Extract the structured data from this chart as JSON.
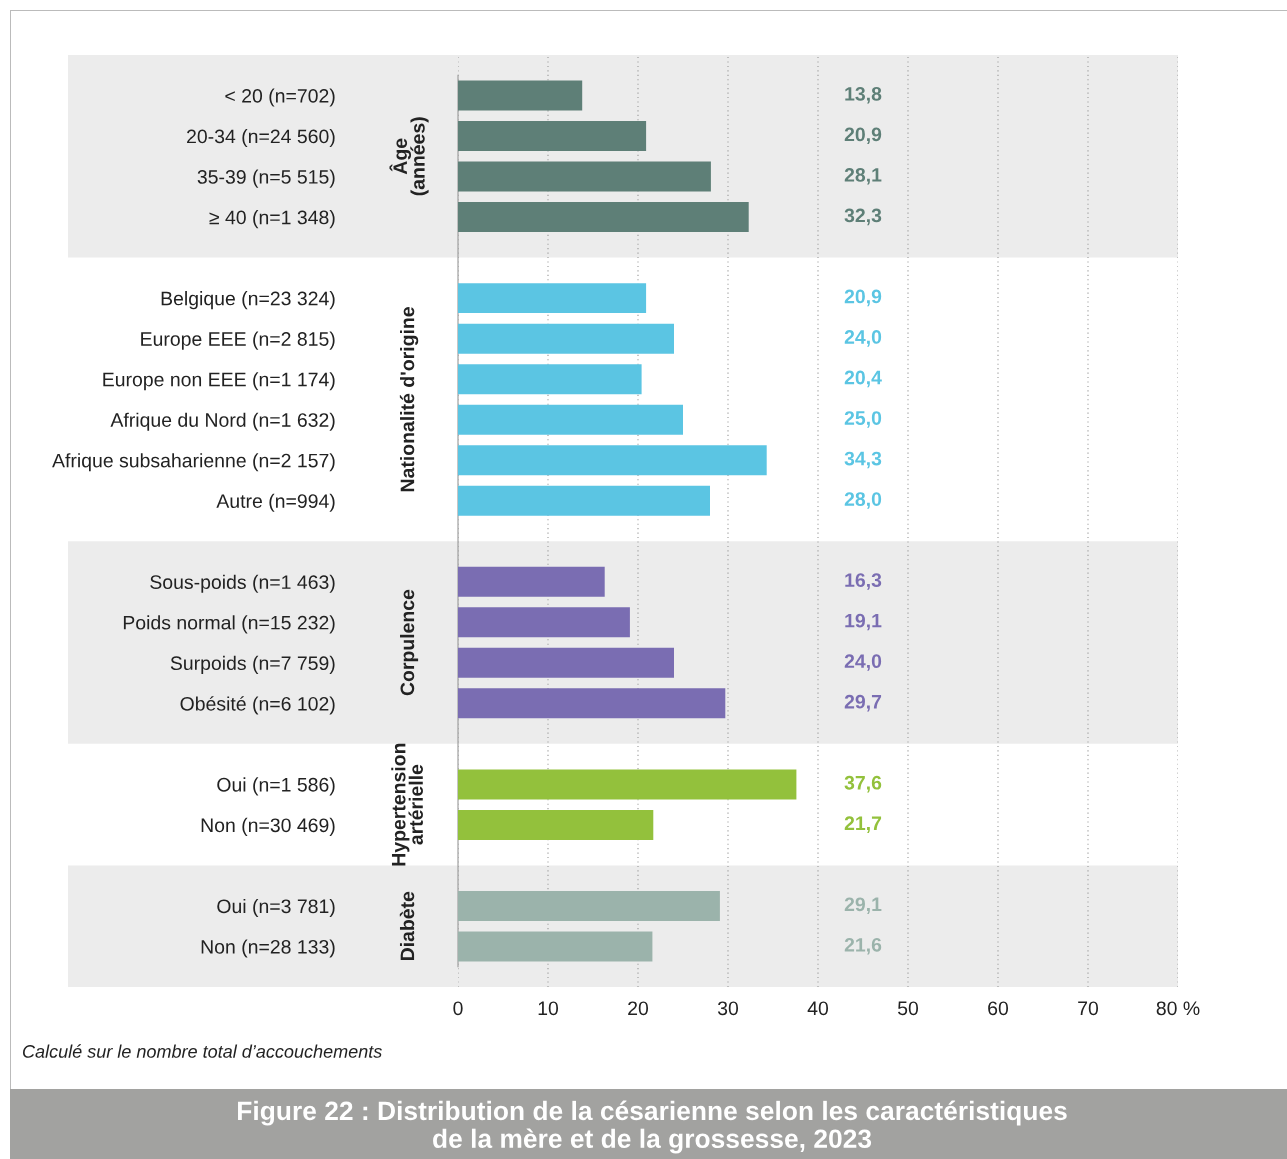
{
  "chart_data": {
    "type": "bar",
    "orientation": "horizontal",
    "title": "Figure 22 : Distribution de la césarienne selon les caractéristiques\nde la mère et de la grossesse, 2023",
    "categories": [
      "< 20 (n=702)",
      "20-34 (n=24 560)",
      "35-39 (n=5 515)",
      "≥ 40 (n=1 348)",
      null,
      "Belgique (n=23 324)",
      "Europe EEE (n=2 815)",
      "Europe non EEE (n=1 174)",
      "Afrique du Nord (n=1 632)",
      "Afrique subsaharienne (n=2 157)",
      "Autre (n=994)",
      null,
      "Sous-poids (n=1 463)",
      "Poids normal (n=15 232)",
      "Surpoids (n=7 759)",
      "Obésité (n=6 102)",
      null,
      "Oui (n=1 586)",
      "Non (n=30 469)",
      null,
      "Oui (n=3 781)",
      "Non (n=28 133)"
    ],
    "values": [
      13.8,
      20.9,
      28.1,
      32.3,
      null,
      20.9,
      24.0,
      20.4,
      25.0,
      34.3,
      28.0,
      null,
      16.3,
      19.1,
      24.0,
      29.7,
      null,
      37.6,
      21.7,
      null,
      29.1,
      21.6
    ],
    "value_labels": [
      "13,8",
      "20,9",
      "28,1",
      "32,3",
      null,
      "20,9",
      "24,0",
      "20,4",
      "25,0",
      "34,3",
      "28,0",
      null,
      "16,3",
      "19,1",
      "24,0",
      "29,7",
      null,
      "37,6",
      "21,7",
      null,
      "29,1",
      "21,6"
    ],
    "colors": [
      "#5e7f77",
      "#5e7f77",
      "#5e7f77",
      "#5e7f77",
      null,
      "#5bc5e3",
      "#5bc5e3",
      "#5bc5e3",
      "#5bc5e3",
      "#5bc5e3",
      "#5bc5e3",
      null,
      "#7a6db2",
      "#7a6db2",
      "#7a6db2",
      "#7a6db2",
      null,
      "#93c13c",
      "#93c13c",
      null,
      "#9bb3ab",
      "#9bb3ab"
    ],
    "xlim": [
      0,
      80
    ],
    "xticks": [
      0,
      10,
      20,
      30,
      40,
      50,
      60,
      70,
      {
        "value": 80,
        "label": "80 %"
      }
    ],
    "grid": "x",
    "annotations": [
      "Âge\n(années)",
      "Nationalité d'origine",
      "Corpulence",
      "Hypertension\nartérielle",
      "Diabète",
      "Calculé sur le nombre total d’accouchements"
    ]
  }
}
